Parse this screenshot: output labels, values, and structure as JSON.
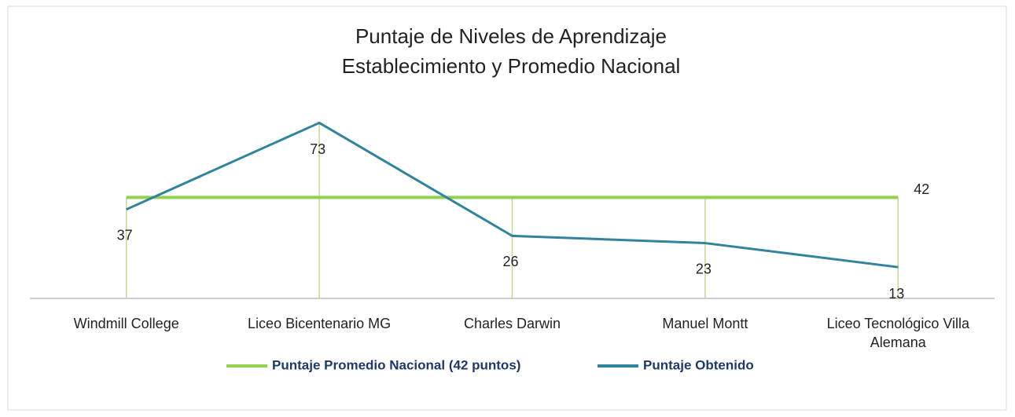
{
  "chart_data": {
    "type": "line",
    "title": [
      "Puntaje de Niveles de Aprendizaje",
      "Establecimiento y Promedio Nacional"
    ],
    "categories": [
      "Windmill College",
      "Liceo Bicentenario MG",
      "Charles Darwin",
      "Manuel Montt",
      "Liceo Tecnológico Villa Alemana"
    ],
    "series": [
      {
        "name": "Puntaje Promedio Nacional (42 puntos)",
        "color": "#92d050",
        "values": [
          42,
          42,
          42,
          42,
          42
        ]
      },
      {
        "name": "Puntaje Obtenido",
        "color": "#31849b",
        "values": [
          37,
          73,
          26,
          23,
          13
        ]
      }
    ],
    "ylim": [
      0,
      80
    ],
    "legend": "bottom"
  }
}
